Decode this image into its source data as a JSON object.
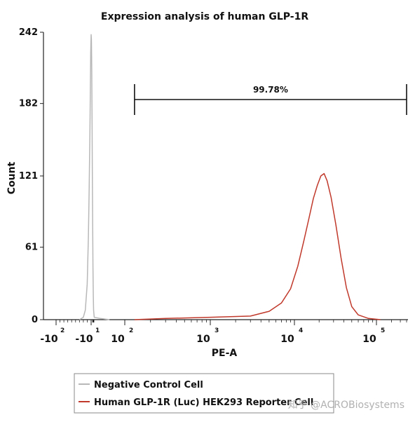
{
  "chart_data": {
    "type": "line",
    "title": "Expression analysis of human GLP-1R",
    "xlabel": "PE-A",
    "ylabel": "Count",
    "xscale": "biexponential",
    "ylim": [
      0,
      242
    ],
    "yticks": [
      "0",
      "61",
      "121",
      "182",
      "242"
    ],
    "xticks": [
      {
        "base": "-10",
        "exp": "2",
        "value": -100
      },
      {
        "base": "-10",
        "exp": "1",
        "value": -10
      },
      {
        "base": "10",
        "exp": "2",
        "value": 100
      },
      {
        "base": "10",
        "exp": "3",
        "value": 1000
      },
      {
        "base": "10",
        "exp": "4",
        "value": 10000
      },
      {
        "base": "10",
        "exp": "5",
        "value": 100000
      }
    ],
    "gate": {
      "label": "99.78%",
      "x_start": 130,
      "x_end": 400000
    },
    "series": [
      {
        "name": "Negative Control Cell",
        "color": "#b8b8b8",
        "points": [
          [
            -40,
            0
          ],
          [
            -30,
            2
          ],
          [
            -25,
            8
          ],
          [
            -20,
            30
          ],
          [
            -17,
            70
          ],
          [
            -15,
            110
          ],
          [
            -13,
            160
          ],
          [
            -12,
            195
          ],
          [
            -11,
            225
          ],
          [
            -10,
            240
          ],
          [
            -9,
            236
          ],
          [
            -8,
            210
          ],
          [
            -7,
            170
          ],
          [
            -6,
            125
          ],
          [
            -5,
            80
          ],
          [
            -4,
            45
          ],
          [
            -3,
            20
          ],
          [
            -2,
            8
          ],
          [
            0,
            2
          ],
          [
            20,
            1
          ],
          [
            50,
            0
          ]
        ]
      },
      {
        "name": "Human GLP-1R (Luc) HEK293 Reporter Cell",
        "color": "#c0392b",
        "points": [
          [
            130,
            0
          ],
          [
            300,
            1
          ],
          [
            1000,
            2
          ],
          [
            3000,
            3
          ],
          [
            5000,
            7
          ],
          [
            7000,
            14
          ],
          [
            9000,
            26
          ],
          [
            11000,
            45
          ],
          [
            13000,
            66
          ],
          [
            15000,
            85
          ],
          [
            17000,
            102
          ],
          [
            19000,
            113
          ],
          [
            21000,
            121
          ],
          [
            23000,
            123
          ],
          [
            25000,
            117
          ],
          [
            28000,
            103
          ],
          [
            32000,
            80
          ],
          [
            37000,
            52
          ],
          [
            43000,
            27
          ],
          [
            50000,
            11
          ],
          [
            60000,
            4
          ],
          [
            80000,
            1
          ],
          [
            120000,
            0
          ]
        ]
      }
    ],
    "legend_position": "bottom"
  },
  "watermark": "知乎 @ACROBiosystems"
}
